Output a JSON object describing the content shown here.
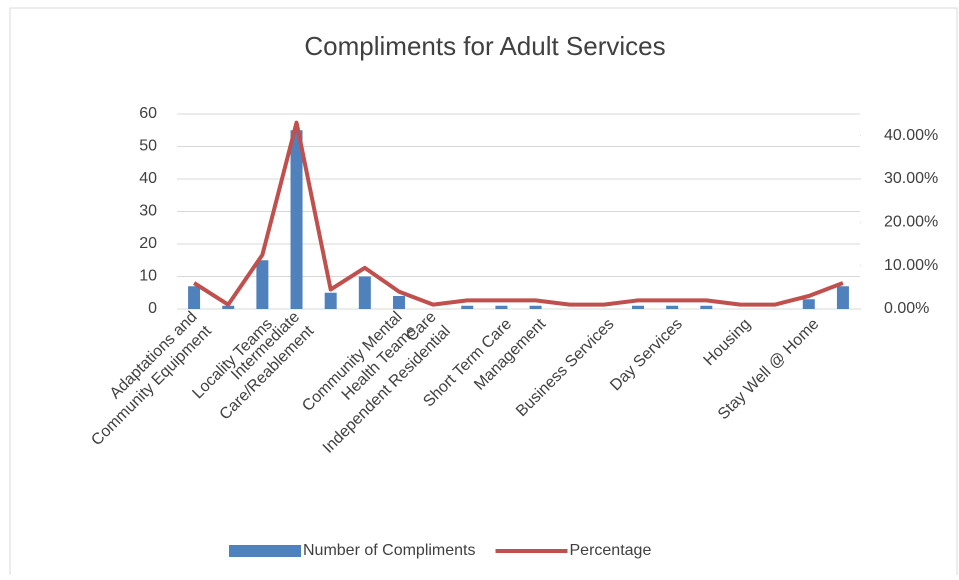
{
  "chart_data": {
    "type": "bar-line",
    "title": "Compliments for Adult Services",
    "categories": [
      "Adaptations and\nCommunity Equipment",
      null,
      "Locality Teams",
      "Intermediate\nCare/Reablement",
      null,
      null,
      "Community Mental\nHealth Teams",
      "Care\nIndependent Residential",
      null,
      "Short Term Care",
      "Management",
      null,
      "Business Services",
      null,
      "Day Services",
      null,
      "Housing",
      null,
      "Stay Well @ Home",
      null
    ],
    "series": [
      {
        "name": "Number of Compliments",
        "color": "#4f81bd",
        "values": [
          7,
          1,
          15,
          55,
          5,
          10,
          4,
          0,
          1,
          1,
          1,
          0,
          0,
          1,
          1,
          1,
          0,
          0,
          3,
          7
        ]
      },
      {
        "name": "Percentage",
        "color": "#c0504d",
        "axis": "y2",
        "values": [
          6,
          1,
          12.5,
          43,
          4.5,
          9.5,
          4,
          1,
          2,
          2,
          2,
          1,
          1,
          2,
          2,
          2,
          1,
          1,
          3,
          6
        ]
      }
    ],
    "ylim": [
      0,
      60
    ],
    "yticks": [
      0,
      10,
      20,
      30,
      40,
      50,
      60
    ],
    "y2lim": [
      0,
      45
    ],
    "y2ticks": [
      {
        "value": 0,
        "label": "0.00%"
      },
      {
        "value": 10,
        "label": "10.00%"
      },
      {
        "value": 20,
        "label": "20.00%"
      },
      {
        "value": 30,
        "label": "30.00%"
      },
      {
        "value": 40,
        "label": "40.00%"
      }
    ],
    "grid": true,
    "legend": "bottom"
  }
}
